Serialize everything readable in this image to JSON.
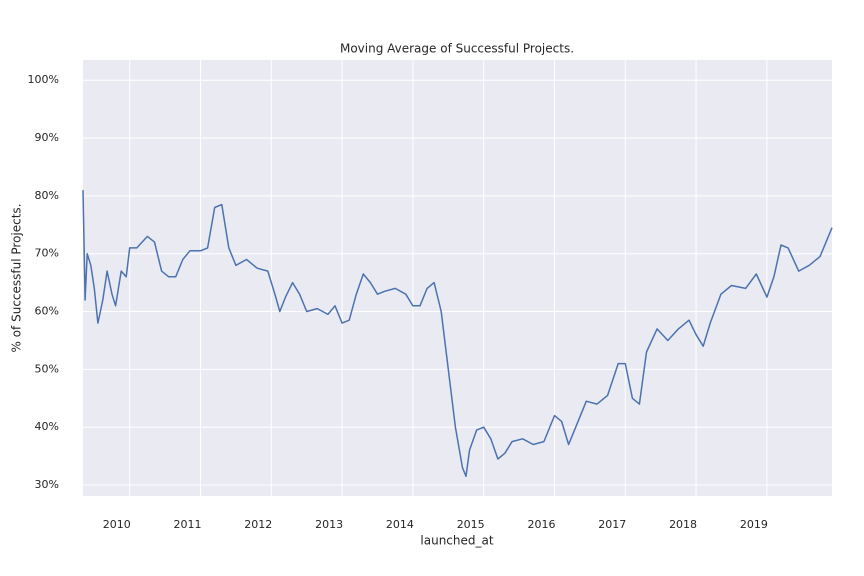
{
  "chart_data": {
    "type": "line",
    "title": "Moving Average of Successful Projects.",
    "x_label": "launched_at",
    "y_label": "% of Successful Projects.",
    "x": [
      2009.34,
      2009.37,
      2009.4,
      2009.45,
      2009.5,
      2009.55,
      2009.62,
      2009.68,
      2009.75,
      2009.8,
      2009.88,
      2009.95,
      2010.0,
      2010.1,
      2010.25,
      2010.35,
      2010.45,
      2010.55,
      2010.65,
      2010.75,
      2010.85,
      2011.0,
      2011.1,
      2011.2,
      2011.3,
      2011.4,
      2011.5,
      2011.65,
      2011.8,
      2011.95,
      2012.05,
      2012.12,
      2012.2,
      2012.3,
      2012.4,
      2012.5,
      2012.65,
      2012.8,
      2012.9,
      2013.0,
      2013.1,
      2013.2,
      2013.3,
      2013.4,
      2013.5,
      2013.6,
      2013.75,
      2013.9,
      2014.0,
      2014.1,
      2014.2,
      2014.3,
      2014.4,
      2014.5,
      2014.6,
      2014.7,
      2014.75,
      2014.8,
      2014.9,
      2015.0,
      2015.1,
      2015.2,
      2015.3,
      2015.4,
      2015.55,
      2015.7,
      2015.85,
      2016.0,
      2016.1,
      2016.2,
      2016.3,
      2016.45,
      2016.6,
      2016.75,
      2016.9,
      2017.0,
      2017.1,
      2017.2,
      2017.3,
      2017.45,
      2017.6,
      2017.75,
      2017.9,
      2018.0,
      2018.1,
      2018.2,
      2018.35,
      2018.5,
      2018.7,
      2018.85,
      2019.0,
      2019.1,
      2019.2,
      2019.3,
      2019.45,
      2019.6,
      2019.75,
      2019.92
    ],
    "series": [
      {
        "name": "moving average",
        "color": "#4c72b0",
        "values": [
          81,
          62,
          70,
          68,
          64,
          58,
          62,
          67,
          63,
          61,
          67,
          66,
          71,
          71,
          73,
          72,
          67,
          66,
          66,
          69,
          70.5,
          70.5,
          71,
          78,
          78.5,
          71,
          68,
          69,
          67.5,
          67,
          63,
          60,
          62.5,
          65,
          63,
          60,
          60.5,
          59.5,
          61,
          58,
          58.5,
          63,
          66.5,
          65,
          63,
          63.5,
          64,
          63,
          61,
          61,
          64,
          65,
          60,
          50,
          40,
          33,
          31.5,
          36,
          39.5,
          40,
          38,
          34.5,
          35.5,
          37.5,
          38,
          37,
          37.5,
          42,
          41,
          37,
          40,
          44.5,
          44,
          45.5,
          51,
          51,
          45,
          44,
          53,
          57,
          55,
          57,
          58.5,
          56,
          54,
          58,
          63,
          64.5,
          64,
          66.5,
          62.5,
          66,
          71.5,
          71,
          67,
          68,
          69.5,
          74.5
        ]
      }
    ],
    "xlim": [
      2009.34,
      2019.92
    ],
    "xticks": [
      2010,
      2011,
      2012,
      2013,
      2014,
      2015,
      2016,
      2017,
      2018,
      2019
    ],
    "ylim": [
      28.1,
      103.5
    ],
    "yticks": [
      {
        "value": 30,
        "label": "30%"
      },
      {
        "value": 40,
        "label": "40%"
      },
      {
        "value": 50,
        "label": "50%"
      },
      {
        "value": 60,
        "label": "60%"
      },
      {
        "value": 70,
        "label": "70%"
      },
      {
        "value": 80,
        "label": "80%"
      },
      {
        "value": 90,
        "label": "90%"
      },
      {
        "value": 100,
        "label": "100%"
      }
    ],
    "grid": true,
    "background": "#eaeaf2"
  }
}
